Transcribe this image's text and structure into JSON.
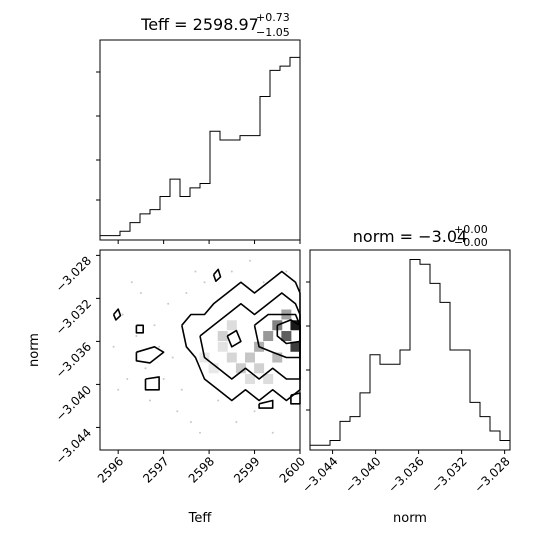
{
  "chart_data": [
    {
      "type": "histogram",
      "panel": "Teff marginal",
      "title": {
        "main": "Teff = 2598.97",
        "upper": "+0.73",
        "lower": "−1.05"
      },
      "xlim": [
        2595.6,
        2600.0
      ],
      "bins": {
        "edges_start": 2595.6,
        "bin_width": 0.22,
        "counts": [
          1,
          1,
          2,
          4,
          6,
          7,
          10,
          14,
          10,
          12,
          13,
          25,
          23,
          23,
          24,
          24,
          33,
          39,
          40,
          42
        ]
      },
      "ymax_count": 46
    },
    {
      "type": "histogram",
      "panel": "norm marginal",
      "title": {
        "main": "norm = −3.04",
        "upper": "+0.00",
        "lower": "−0.00"
      },
      "xlim": [
        -3.0461,
        -3.0275
      ],
      "bins": {
        "edges_start": -3.0461,
        "bin_width": 0.00093,
        "counts": [
          1,
          1,
          2,
          6,
          7,
          12,
          20,
          18,
          18,
          21,
          40,
          39,
          35,
          31,
          21,
          21,
          10,
          7,
          4,
          2
        ]
      },
      "ymax_count": 42
    },
    {
      "type": "heatmap",
      "panel": "2D density Teff vs norm",
      "xlabel": "Teff",
      "ylabel": "norm",
      "xlim": [
        2595.6,
        2600.0
      ],
      "ylim": [
        -3.0461,
        -3.0275
      ],
      "xticks": [
        "2596",
        "2597",
        "2598",
        "2599",
        "2600"
      ],
      "yticks": [
        "−3.028",
        "−3.032",
        "−3.036",
        "−3.040",
        "−3.044"
      ],
      "cells": [
        {
          "x": 2598.3,
          "y": -3.0365,
          "level": 0.12
        },
        {
          "x": 2598.5,
          "y": -3.0375,
          "level": 0.18
        },
        {
          "x": 2598.7,
          "y": -3.0385,
          "level": 0.22
        },
        {
          "x": 2598.9,
          "y": -3.0395,
          "level": 0.14
        },
        {
          "x": 2599.1,
          "y": -3.0365,
          "level": 0.35
        },
        {
          "x": 2599.3,
          "y": -3.0355,
          "level": 0.45
        },
        {
          "x": 2599.5,
          "y": -3.0345,
          "level": 0.55
        },
        {
          "x": 2599.7,
          "y": -3.0355,
          "level": 0.7
        },
        {
          "x": 2599.9,
          "y": -3.0345,
          "level": 1.0
        },
        {
          "x": 2599.9,
          "y": -3.0365,
          "level": 0.85
        },
        {
          "x": 2599.7,
          "y": -3.0335,
          "level": 0.4
        },
        {
          "x": 2599.5,
          "y": -3.0375,
          "level": 0.3
        },
        {
          "x": 2598.3,
          "y": -3.0355,
          "level": 0.2
        },
        {
          "x": 2598.5,
          "y": -3.0345,
          "level": 0.15
        },
        {
          "x": 2597.9,
          "y": -3.0375,
          "level": 0.1
        },
        {
          "x": 2598.1,
          "y": -3.0385,
          "level": 0.1
        },
        {
          "x": 2598.9,
          "y": -3.0375,
          "level": 0.25
        },
        {
          "x": 2599.1,
          "y": -3.0385,
          "level": 0.2
        },
        {
          "x": 2599.3,
          "y": -3.0395,
          "level": 0.15
        }
      ],
      "scatter_points": [
        {
          "x": 2596.3,
          "y": -3.0305
        },
        {
          "x": 2596.5,
          "y": -3.0315
        },
        {
          "x": 2596.1,
          "y": -3.0335
        },
        {
          "x": 2596.8,
          "y": -3.0345
        },
        {
          "x": 2596.4,
          "y": -3.0355
        },
        {
          "x": 2596.9,
          "y": -3.0365
        },
        {
          "x": 2597.2,
          "y": -3.0375
        },
        {
          "x": 2596.6,
          "y": -3.0385
        },
        {
          "x": 2597.0,
          "y": -3.0395
        },
        {
          "x": 2597.4,
          "y": -3.0405
        },
        {
          "x": 2596.7,
          "y": -3.0415
        },
        {
          "x": 2597.3,
          "y": -3.0425
        },
        {
          "x": 2597.6,
          "y": -3.0435
        },
        {
          "x": 2597.8,
          "y": -3.0445
        },
        {
          "x": 2598.2,
          "y": -3.0415
        },
        {
          "x": 2598.6,
          "y": -3.0435
        },
        {
          "x": 2599.0,
          "y": -3.0425
        },
        {
          "x": 2599.4,
          "y": -3.0445
        },
        {
          "x": 2599.8,
          "y": -3.0415
        },
        {
          "x": 2599.7,
          "y": -3.0295
        },
        {
          "x": 2598.9,
          "y": -3.0285
        },
        {
          "x": 2598.5,
          "y": -3.0295
        },
        {
          "x": 2597.9,
          "y": -3.0305
        },
        {
          "x": 2597.5,
          "y": -3.0315
        },
        {
          "x": 2597.1,
          "y": -3.0325
        },
        {
          "x": 2596.2,
          "y": -3.0395
        },
        {
          "x": 2595.9,
          "y": -3.0365
        },
        {
          "x": 2596.0,
          "y": -3.0405
        },
        {
          "x": 2597.7,
          "y": -3.0295
        },
        {
          "x": 2599.2,
          "y": -3.0305
        }
      ],
      "contours": [
        {
          "points": [
            [
              2597.4,
              -3.0345
            ],
            [
              2597.6,
              -3.0335
            ],
            [
              2597.9,
              -3.0335
            ],
            [
              2598.1,
              -3.0325
            ],
            [
              2598.4,
              -3.0315
            ],
            [
              2598.7,
              -3.0305
            ],
            [
              2599.0,
              -3.0315
            ],
            [
              2599.3,
              -3.0305
            ],
            [
              2599.6,
              -3.0295
            ],
            [
              2599.9,
              -3.0305
            ],
            [
              2600.0,
              -3.0315
            ],
            [
              2600.0,
              -3.0405
            ],
            [
              2599.7,
              -3.0415
            ],
            [
              2599.4,
              -3.0405
            ],
            [
              2599.1,
              -3.0415
            ],
            [
              2598.8,
              -3.0405
            ],
            [
              2598.5,
              -3.0415
            ],
            [
              2598.2,
              -3.0405
            ],
            [
              2597.9,
              -3.0395
            ],
            [
              2597.7,
              -3.0375
            ],
            [
              2597.5,
              -3.0365
            ],
            [
              2597.4,
              -3.0345
            ]
          ]
        },
        {
          "points": [
            [
              2597.8,
              -3.0355
            ],
            [
              2598.1,
              -3.0345
            ],
            [
              2598.4,
              -3.0335
            ],
            [
              2598.7,
              -3.0325
            ],
            [
              2599.0,
              -3.0335
            ],
            [
              2599.3,
              -3.0325
            ],
            [
              2599.6,
              -3.0315
            ],
            [
              2599.9,
              -3.0325
            ],
            [
              2600.0,
              -3.0335
            ],
            [
              2600.0,
              -3.0395
            ],
            [
              2599.7,
              -3.0395
            ],
            [
              2599.4,
              -3.0385
            ],
            [
              2599.1,
              -3.0395
            ],
            [
              2598.8,
              -3.0385
            ],
            [
              2598.5,
              -3.0395
            ],
            [
              2598.2,
              -3.0385
            ],
            [
              2597.9,
              -3.0375
            ],
            [
              2597.8,
              -3.0355
            ]
          ]
        },
        {
          "points": [
            [
              2599.0,
              -3.0345
            ],
            [
              2599.3,
              -3.0335
            ],
            [
              2599.6,
              -3.0335
            ],
            [
              2599.9,
              -3.0335
            ],
            [
              2600.0,
              -3.0345
            ],
            [
              2600.0,
              -3.0375
            ],
            [
              2599.7,
              -3.0375
            ],
            [
              2599.4,
              -3.037
            ],
            [
              2599.1,
              -3.0365
            ],
            [
              2599.0,
              -3.0345
            ]
          ]
        },
        {
          "points": [
            [
              2599.5,
              -3.0345
            ],
            [
              2599.8,
              -3.034
            ],
            [
              2600.0,
              -3.0345
            ],
            [
              2600.0,
              -3.036
            ],
            [
              2599.7,
              -3.0362
            ],
            [
              2599.5,
              -3.0355
            ],
            [
              2599.5,
              -3.0345
            ]
          ]
        },
        {
          "points": [
            [
              2596.4,
              -3.037
            ],
            [
              2596.8,
              -3.0365
            ],
            [
              2597.0,
              -3.037
            ],
            [
              2596.7,
              -3.038
            ],
            [
              2596.4,
              -3.0378
            ],
            [
              2596.4,
              -3.037
            ]
          ]
        },
        {
          "points": [
            [
              2596.4,
              -3.0345
            ],
            [
              2596.55,
              -3.0345
            ],
            [
              2596.55,
              -3.0352
            ],
            [
              2596.4,
              -3.0352
            ],
            [
              2596.4,
              -3.0345
            ]
          ]
        },
        {
          "points": [
            [
              2596.6,
              -3.0395
            ],
            [
              2596.9,
              -3.0393
            ],
            [
              2596.9,
              -3.0405
            ],
            [
              2596.6,
              -3.0405
            ],
            [
              2596.6,
              -3.0395
            ]
          ]
        },
        {
          "points": [
            [
              2595.9,
              -3.0335
            ],
            [
              2596.0,
              -3.033
            ],
            [
              2596.05,
              -3.0336
            ],
            [
              2595.95,
              -3.034
            ],
            [
              2595.9,
              -3.0335
            ]
          ]
        },
        {
          "points": [
            [
              2598.1,
              -3.0298
            ],
            [
              2598.2,
              -3.0293
            ],
            [
              2598.25,
              -3.03
            ],
            [
              2598.15,
              -3.0304
            ],
            [
              2598.1,
              -3.0298
            ]
          ]
        },
        {
          "points": [
            [
              2599.1,
              -3.0418
            ],
            [
              2599.4,
              -3.0415
            ],
            [
              2599.4,
              -3.0422
            ],
            [
              2599.1,
              -3.0422
            ],
            [
              2599.1,
              -3.0418
            ]
          ]
        },
        {
          "points": [
            [
              2599.8,
              -3.041
            ],
            [
              2600.0,
              -3.0408
            ],
            [
              2600.0,
              -3.0418
            ],
            [
              2599.8,
              -3.0418
            ],
            [
              2599.8,
              -3.041
            ]
          ]
        },
        {
          "points": [
            [
              2598.4,
              -3.0355
            ],
            [
              2598.6,
              -3.035
            ],
            [
              2598.7,
              -3.036
            ],
            [
              2598.5,
              -3.0365
            ],
            [
              2598.4,
              -3.0355
            ]
          ]
        }
      ]
    }
  ],
  "labels": {
    "teff_title_main": "Teff = 2598.97",
    "teff_title_upper": "+0.73",
    "teff_title_lower": "−1.05",
    "norm_title_main": "norm = −3.04",
    "norm_title_upper": "+0.00",
    "norm_title_lower": "−0.00",
    "x_label_teff": "Teff",
    "x_label_norm": "norm",
    "y_label_norm": "norm"
  },
  "xticks_norm": [
    "−3.044",
    "−3.040",
    "−3.036",
    "−3.032",
    "−3.028"
  ],
  "colors": {
    "line": "#000000",
    "scatter": "#c8c8c8"
  }
}
